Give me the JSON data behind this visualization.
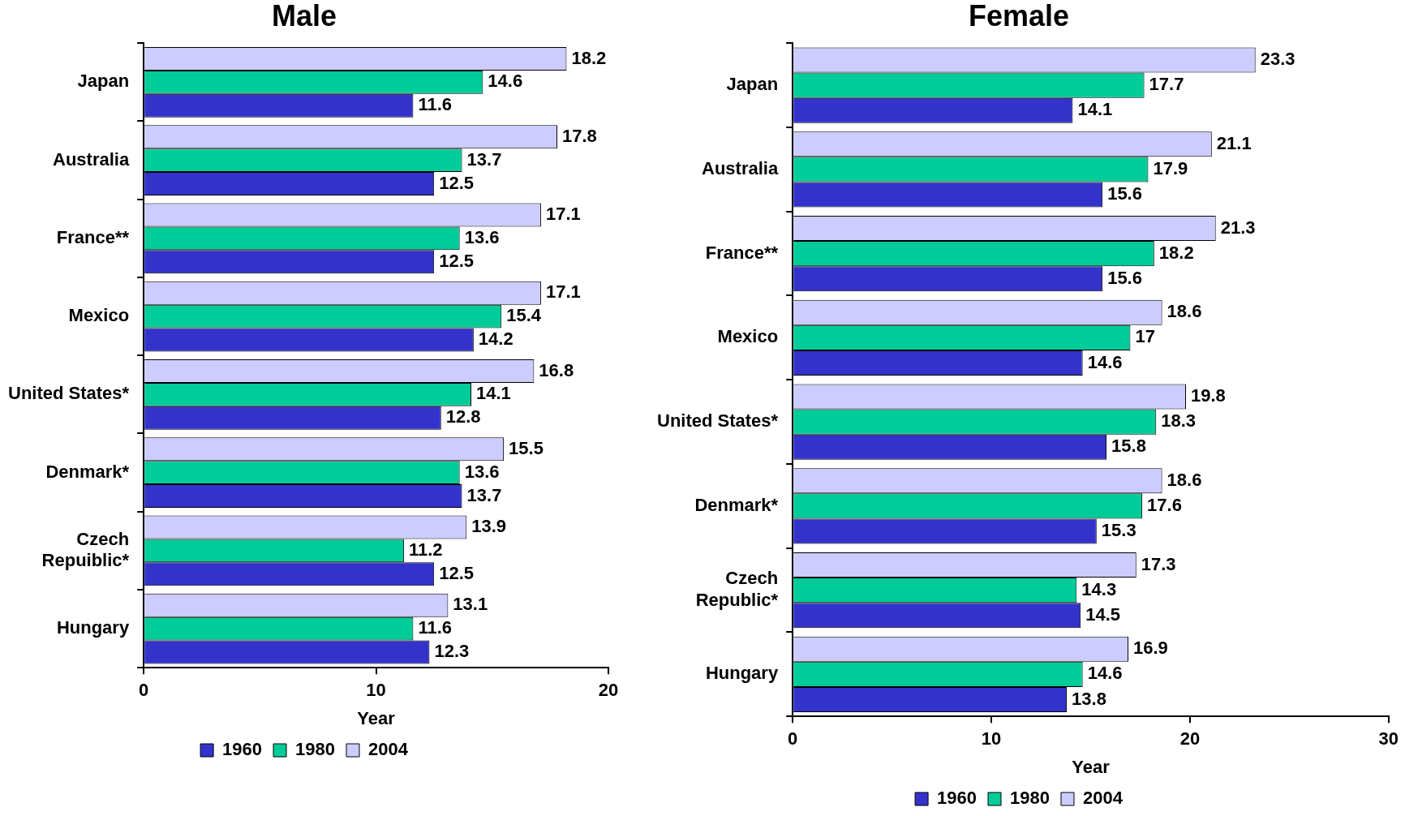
{
  "chart_data": [
    {
      "type": "bar",
      "orientation": "horizontal",
      "title": "Male",
      "xlabel": "Year",
      "categories": [
        "Japan",
        "Australia",
        "France**",
        "Mexico",
        "United States*",
        "Denmark*",
        "Czech\nRepuiblic*",
        "Hungary"
      ],
      "series": [
        {
          "name": "2004",
          "color": "#ccccff",
          "values": [
            18.2,
            17.8,
            17.1,
            17.1,
            16.8,
            15.5,
            13.9,
            13.1
          ]
        },
        {
          "name": "1980",
          "color": "#00cc99",
          "values": [
            14.6,
            13.7,
            13.6,
            15.4,
            14.1,
            13.6,
            11.2,
            11.6
          ]
        },
        {
          "name": "1960",
          "color": "#3333cc",
          "values": [
            11.6,
            12.5,
            12.5,
            14.2,
            12.8,
            13.7,
            12.5,
            12.3
          ]
        }
      ],
      "xlim": [
        0,
        20
      ],
      "xticks": [
        0,
        10,
        20
      ],
      "data_labels": true,
      "legend": "bottom"
    },
    {
      "type": "bar",
      "orientation": "horizontal",
      "title": "Female",
      "xlabel": "Year",
      "categories": [
        "Japan",
        "Australia",
        "France**",
        "Mexico",
        "United States*",
        "Denmark*",
        "Czech\nRepublic*",
        "Hungary"
      ],
      "series": [
        {
          "name": "2004",
          "color": "#ccccff",
          "values": [
            23.3,
            21.1,
            21.3,
            18.6,
            19.8,
            18.6,
            17.3,
            16.9
          ]
        },
        {
          "name": "1980",
          "color": "#00cc99",
          "values": [
            17.7,
            17.9,
            18.2,
            17,
            18.3,
            17.6,
            14.3,
            14.6
          ]
        },
        {
          "name": "1960",
          "color": "#3333cc",
          "values": [
            14.1,
            15.6,
            15.6,
            14.6,
            15.8,
            15.3,
            14.5,
            13.8
          ]
        }
      ],
      "xlim": [
        0,
        30
      ],
      "xticks": [
        0,
        10,
        20,
        30
      ],
      "data_labels": true,
      "legend": "bottom"
    }
  ]
}
